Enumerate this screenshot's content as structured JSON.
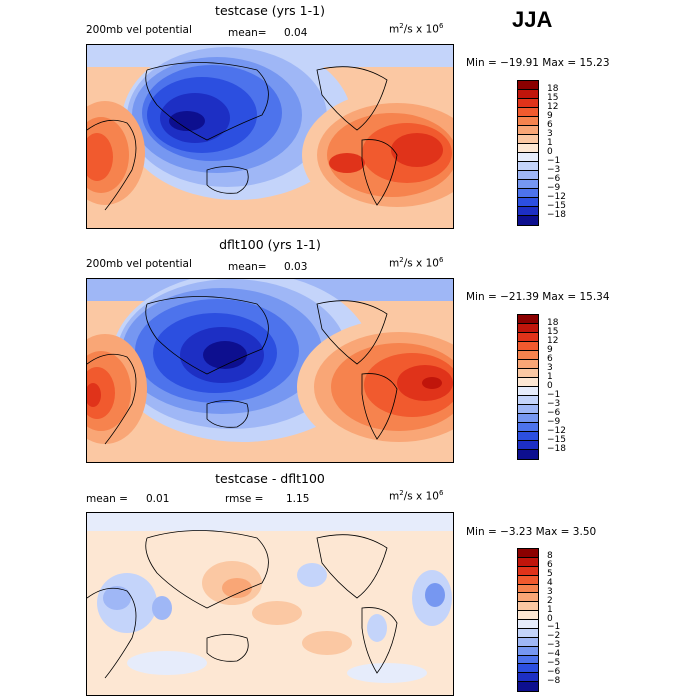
{
  "season": "JJA",
  "colorbar_main": {
    "labels": [
      "18",
      "15",
      "12",
      "9",
      "6",
      "3",
      "1",
      "0",
      "−1",
      "−3",
      "−6",
      "−9",
      "−12",
      "−15",
      "−18"
    ],
    "colors": [
      "#8b0000",
      "#c0150b",
      "#e0331a",
      "#f15a2e",
      "#f6834e",
      "#f9a676",
      "#fbc8a3",
      "#fde7d3",
      "#e6ecfb",
      "#c4d4fa",
      "#9fb7f6",
      "#7697f1",
      "#4d73ec",
      "#2c4fe0",
      "#1d2fc4",
      "#0d0f8f"
    ]
  },
  "colorbar_diff": {
    "labels": [
      "8",
      "6",
      "5",
      "4",
      "3",
      "2",
      "1",
      "0",
      "−1",
      "−2",
      "−3",
      "−4",
      "−5",
      "−6",
      "−8"
    ],
    "colors": [
      "#8b0000",
      "#c0150b",
      "#e0331a",
      "#f15a2e",
      "#f6834e",
      "#f9a676",
      "#fbc8a3",
      "#fde7d3",
      "#e6ecfb",
      "#c4d4fa",
      "#9fb7f6",
      "#7697f1",
      "#4d73ec",
      "#2c4fe0",
      "#1d2fc4",
      "#0d0f8f"
    ]
  },
  "panels": [
    {
      "title": "testcase (yrs 1-1)",
      "left_label": "200mb vel potential",
      "mean_label": "mean=",
      "mean_value": "0.04",
      "units_base": "m",
      "units_exp1": "2",
      "units_mid": "/s x 10",
      "units_exp2": "6",
      "minmax": "Min = −19.91 Max =  15.23"
    },
    {
      "title": "dflt100 (yrs 1-1)",
      "left_label": "200mb vel potential",
      "mean_label": "mean=",
      "mean_value": "0.03",
      "units_base": "m",
      "units_exp1": "2",
      "units_mid": "/s x 10",
      "units_exp2": "6",
      "minmax": "Min = −21.39 Max =  15.34"
    },
    {
      "title": "testcase - dflt100",
      "mean_label": "mean =",
      "mean_value": "0.01",
      "rmse_label": "rmse =",
      "rmse_value": "1.15",
      "units_base": "m",
      "units_exp1": "2",
      "units_mid": "/s x 10",
      "units_exp2": "6",
      "minmax": "Min =  −3.23 Max =   3.50"
    }
  ]
}
